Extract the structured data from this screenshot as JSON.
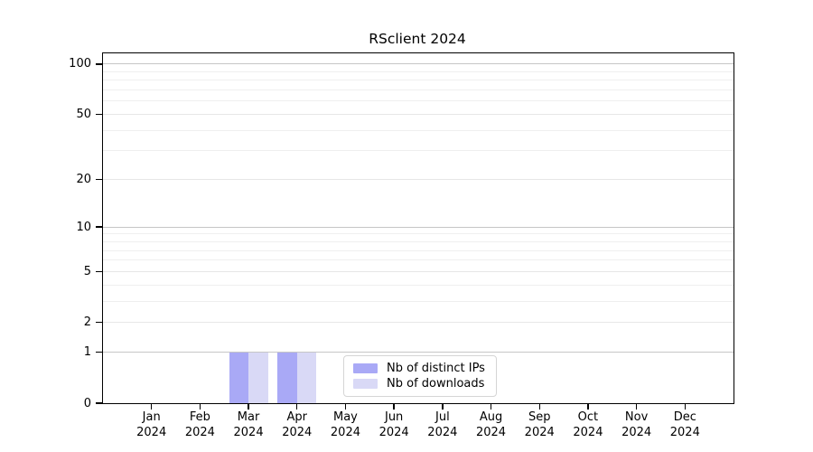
{
  "title": "RSclient 2024",
  "chart_data": {
    "type": "bar",
    "title": "RSclient 2024",
    "categories": [
      "Jan",
      "Feb",
      "Mar",
      "Apr",
      "May",
      "Jun",
      "Jul",
      "Aug",
      "Sep",
      "Oct",
      "Nov",
      "Dec"
    ],
    "year_label": "2024",
    "series": [
      {
        "name": "Nb of distinct IPs",
        "color": "#a9a9f6",
        "values": [
          0,
          0,
          1,
          1,
          0,
          0,
          0,
          0,
          0,
          0,
          0,
          0
        ]
      },
      {
        "name": "Nb of downloads",
        "color": "#d9d9f6",
        "values": [
          0,
          0,
          1,
          1,
          0,
          0,
          0,
          0,
          0,
          0,
          0,
          0
        ]
      }
    ],
    "xlabel": "",
    "ylabel": "",
    "y_scale": "log1p",
    "ylim": [
      0,
      116
    ],
    "y_ticks": [
      0,
      1,
      2,
      5,
      10,
      20,
      50,
      100
    ],
    "y_major_gridlines": [
      1,
      10,
      100
    ],
    "y_mid_gridlines": [
      2,
      5,
      20,
      50
    ],
    "y_minor_gridlines": [
      3,
      4,
      6,
      7,
      8,
      9,
      30,
      40,
      60,
      70,
      80,
      90
    ],
    "grid": "horizontal",
    "legend_position": "inside-bottom-center"
  }
}
